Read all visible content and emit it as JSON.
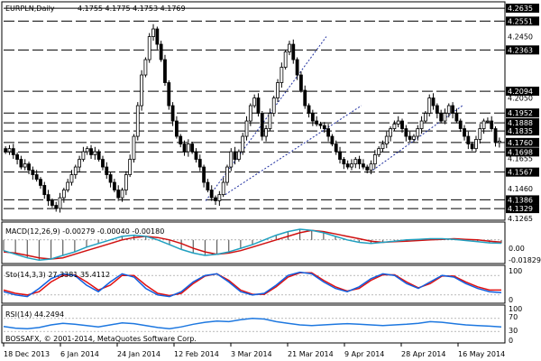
{
  "window": {
    "symbol_label": "EURPLN,Daily",
    "ohlc_text": "4.1755 4.1775 4.1753 4.1769",
    "watermark": "BOSSAFX, © 2001-2014, MetaQuotes Software Corp."
  },
  "main_price_axis": {
    "range": [
      4.1265,
      4.2665
    ],
    "level_lines": [
      {
        "value": 4.2635,
        "label": "4.2635",
        "style": "solid"
      },
      {
        "value": 4.2551,
        "label": "4.2551",
        "style": "dash"
      },
      {
        "value": 4.2363,
        "label": "4.2363",
        "style": "dash"
      },
      {
        "value": 4.2094,
        "label": "4.2094",
        "style": "dash"
      },
      {
        "value": 4.1952,
        "label": "4.1952",
        "style": "dash"
      },
      {
        "value": 4.1888,
        "label": "4.1888",
        "style": "dash"
      },
      {
        "value": 4.1835,
        "label": "4.1835",
        "style": "dash"
      },
      {
        "value": 4.176,
        "label": "4.1760",
        "style": "dash"
      },
      {
        "value": 4.1698,
        "label": "4.1698",
        "style": "dash"
      },
      {
        "value": 4.1567,
        "label": "4.1567",
        "style": "dash"
      },
      {
        "value": 4.1386,
        "label": "4.1386",
        "style": "dash"
      },
      {
        "value": 4.1329,
        "label": "4.1329",
        "style": "dash"
      }
    ],
    "extra_ticks": [
      "4.2450",
      "4.2050",
      "4.1655",
      "4.1460",
      "4.1265"
    ]
  },
  "macd_panel": {
    "label": "MACD(12,26,9) -0.00279 -0.00040 -0.00180",
    "ticks": [
      "0.00",
      "-0.01829"
    ]
  },
  "stoch_panel": {
    "label": "Sto(14,3,3) 27.3381 35.4112",
    "ticks": [
      "100",
      "0"
    ]
  },
  "rsi_panel": {
    "label": "RSI(14) 44.2494",
    "ticks": [
      "100",
      "70",
      "30",
      "0"
    ]
  },
  "time_axis": {
    "labels": [
      "18 Dec 2013",
      "6 Jan 2014",
      "24 Jan 2014",
      "12 Feb 2014",
      "3 Mar 2014",
      "21 Mar 2014",
      "9 Apr 2014",
      "28 Apr 2014",
      "16 May 2014"
    ]
  },
  "colors": {
    "candle": "#000000",
    "level_box": "#000000",
    "trend_line": "#2030a0",
    "macd_signal": "#d01010",
    "macd_main": "#20a0c0",
    "stoch_main": "#1060e0",
    "stoch_signal": "#e01010",
    "rsi_line": "#1e78e0",
    "grid_dash": "#000000"
  },
  "chart_data": {
    "type": "candlestick",
    "title": "EURPLN,Daily",
    "ohlc_last": {
      "open": 4.1755,
      "high": 4.1775,
      "low": 4.1753,
      "close": 4.1769
    },
    "closes": [
      4.17,
      4.172,
      4.168,
      4.165,
      4.16,
      4.162,
      4.158,
      4.155,
      4.152,
      4.148,
      4.142,
      4.138,
      4.135,
      4.133,
      4.14,
      4.145,
      4.15,
      4.155,
      4.16,
      4.165,
      4.17,
      4.172,
      4.168,
      4.17,
      4.165,
      4.16,
      4.155,
      4.15,
      4.145,
      4.14,
      4.145,
      4.155,
      4.165,
      4.18,
      4.2,
      4.22,
      4.23,
      4.245,
      4.25,
      4.24,
      4.23,
      4.215,
      4.2,
      4.19,
      4.18,
      4.175,
      4.17,
      4.175,
      4.17,
      4.165,
      4.16,
      4.15,
      4.145,
      4.14,
      4.138,
      4.142,
      4.15,
      4.16,
      4.17,
      4.165,
      4.17,
      4.18,
      4.19,
      4.2,
      4.205,
      4.195,
      4.18,
      4.185,
      4.195,
      4.205,
      4.215,
      4.225,
      4.235,
      4.24,
      4.23,
      4.22,
      4.21,
      4.2,
      4.195,
      4.19,
      4.188,
      4.187,
      4.185,
      4.18,
      4.175,
      4.17,
      4.165,
      4.162,
      4.16,
      4.162,
      4.165,
      4.162,
      4.16,
      4.158,
      4.162,
      4.168,
      4.172,
      4.175,
      4.18,
      4.185,
      4.188,
      4.19,
      4.185,
      4.18,
      4.178,
      4.18,
      4.185,
      4.19,
      4.195,
      4.205,
      4.2,
      4.195,
      4.19,
      4.195,
      4.2,
      4.195,
      4.19,
      4.185,
      4.18,
      4.175,
      4.172,
      4.178,
      4.185,
      4.19,
      4.19,
      4.185,
      4.176,
      4.1769
    ],
    "macd_signal": [
      -0.01,
      -0.011,
      -0.013,
      -0.015,
      -0.016,
      -0.015,
      -0.012,
      -0.009,
      -0.006,
      -0.003,
      0.0,
      0.002,
      0.003,
      0.002,
      0.0,
      -0.003,
      -0.007,
      -0.01,
      -0.012,
      -0.011,
      -0.009,
      -0.006,
      -0.003,
      0.0,
      0.003,
      0.006,
      0.008,
      0.007,
      0.005,
      0.003,
      0.001,
      -0.001,
      -0.002,
      -0.0015,
      -0.001,
      -0.0005,
      0.0,
      0.0005,
      0.001,
      0.0005,
      0.0,
      -0.001,
      -0.0018
    ],
    "macd_main": [
      -0.009,
      -0.012,
      -0.015,
      -0.017,
      -0.016,
      -0.013,
      -0.01,
      -0.006,
      -0.003,
      0.0,
      0.003,
      0.004,
      0.003,
      0.0,
      -0.004,
      -0.008,
      -0.011,
      -0.013,
      -0.012,
      -0.01,
      -0.007,
      -0.004,
      0.0,
      0.004,
      0.007,
      0.009,
      0.008,
      0.006,
      0.003,
      0.0,
      -0.002,
      -0.003,
      -0.002,
      -0.001,
      0.0,
      0.0005,
      0.001,
      0.001,
      0.0005,
      -0.0005,
      -0.0015,
      -0.0025,
      -0.0028
    ],
    "stoch_main": [
      30,
      20,
      15,
      40,
      70,
      85,
      80,
      50,
      30,
      60,
      85,
      75,
      40,
      20,
      15,
      30,
      60,
      80,
      85,
      60,
      30,
      20,
      25,
      50,
      80,
      90,
      85,
      60,
      40,
      30,
      45,
      70,
      85,
      80,
      55,
      40,
      60,
      80,
      75,
      55,
      40,
      30,
      27
    ],
    "stoch_signal": [
      35,
      25,
      20,
      30,
      60,
      80,
      82,
      60,
      35,
      50,
      80,
      80,
      50,
      25,
      18,
      25,
      55,
      78,
      85,
      65,
      35,
      22,
      22,
      45,
      75,
      88,
      88,
      65,
      45,
      32,
      40,
      65,
      82,
      82,
      60,
      42,
      55,
      78,
      78,
      60,
      45,
      35,
      35
    ],
    "rsi": [
      45,
      40,
      38,
      42,
      50,
      55,
      52,
      48,
      44,
      50,
      56,
      54,
      48,
      42,
      38,
      44,
      52,
      58,
      62,
      60,
      66,
      70,
      68,
      60,
      55,
      50,
      48,
      50,
      52,
      54,
      52,
      50,
      48,
      50,
      52,
      55,
      60,
      58,
      54,
      50,
      48,
      46,
      44
    ]
  }
}
